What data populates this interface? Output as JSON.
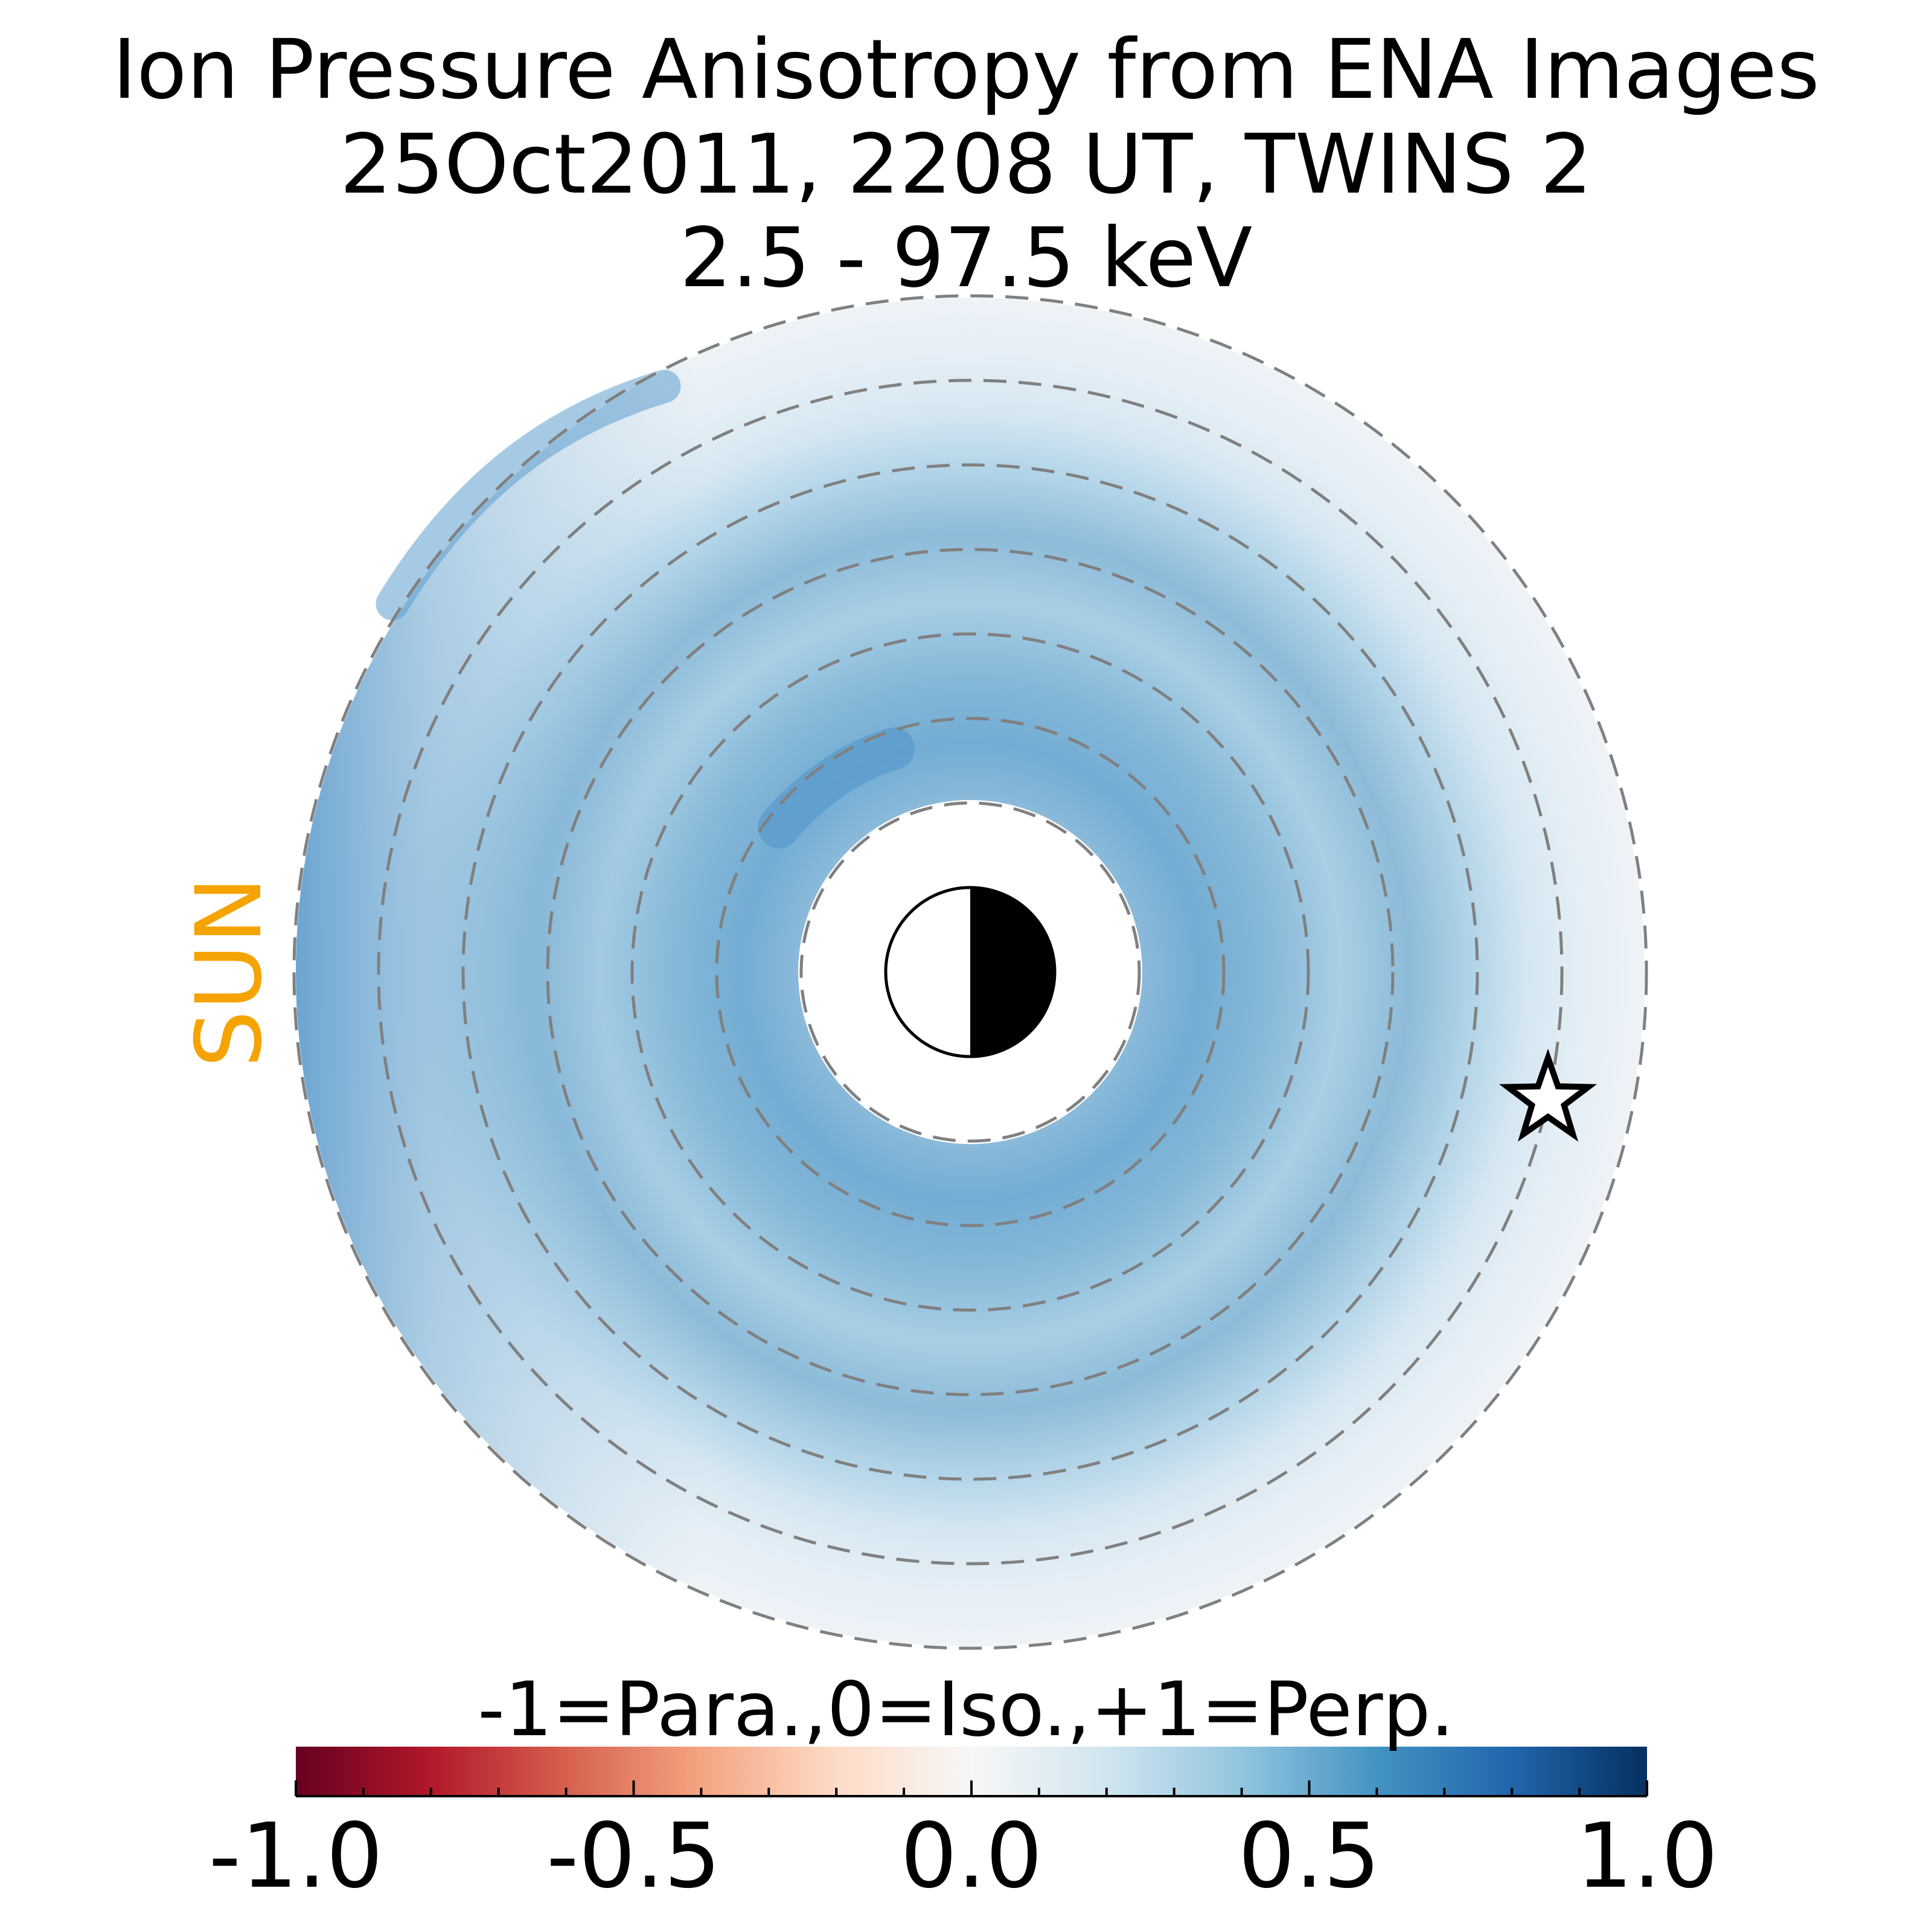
{
  "titles": {
    "line1": "Ion Pressure Anisotropy from  ENA Images",
    "line2": "25Oct2011, 2208 UT,  TWINS 2",
    "line3": "2.5 - 97.5 keV"
  },
  "sun_label": "SUN",
  "colorbar": {
    "label": "-1=Para.,0=Iso.,+1=Perp.",
    "range": [
      -1.0,
      1.0
    ],
    "ticks": [
      -1.0,
      -0.5,
      0.0,
      0.5,
      1.0
    ],
    "tick_labels": [
      "-1.0",
      "-0.5",
      "0.0",
      "0.5",
      "1.0"
    ],
    "colors": [
      "#67001F",
      "#B2182B",
      "#D6604D",
      "#F4A582",
      "#FDDBC7",
      "#F7F7F7",
      "#D1E5F0",
      "#92C5DE",
      "#4393C3",
      "#2166AC",
      "#053061"
    ]
  },
  "colors": {
    "sun": "#F5A300",
    "grid_circles": "#808080"
  },
  "chart_data": {
    "type": "heatmap",
    "projection": "polar equatorial map, sun to the left",
    "colormap": "RdBu",
    "value_range": [
      -1.0,
      1.0
    ],
    "inner_boundary_re": 2,
    "outer_boundary_re": 8,
    "grid_circles_re": [
      2,
      3,
      4,
      5,
      6,
      7,
      8
    ],
    "grid_style": "dashed",
    "earth_symbol": "half-shaded circle, night side right",
    "spacecraft_marker": "star",
    "typical_values": {
      "inner_ring_2_to_3_re": 0.45,
      "ring_3_to_5_re": 0.35,
      "ring_5_to_6_re": 0.22,
      "ring_6_to_7_re": 0.25,
      "outer_ring_7_to_8_re": 0.05,
      "dusk_edge_near_8_re": 0.55
    }
  }
}
